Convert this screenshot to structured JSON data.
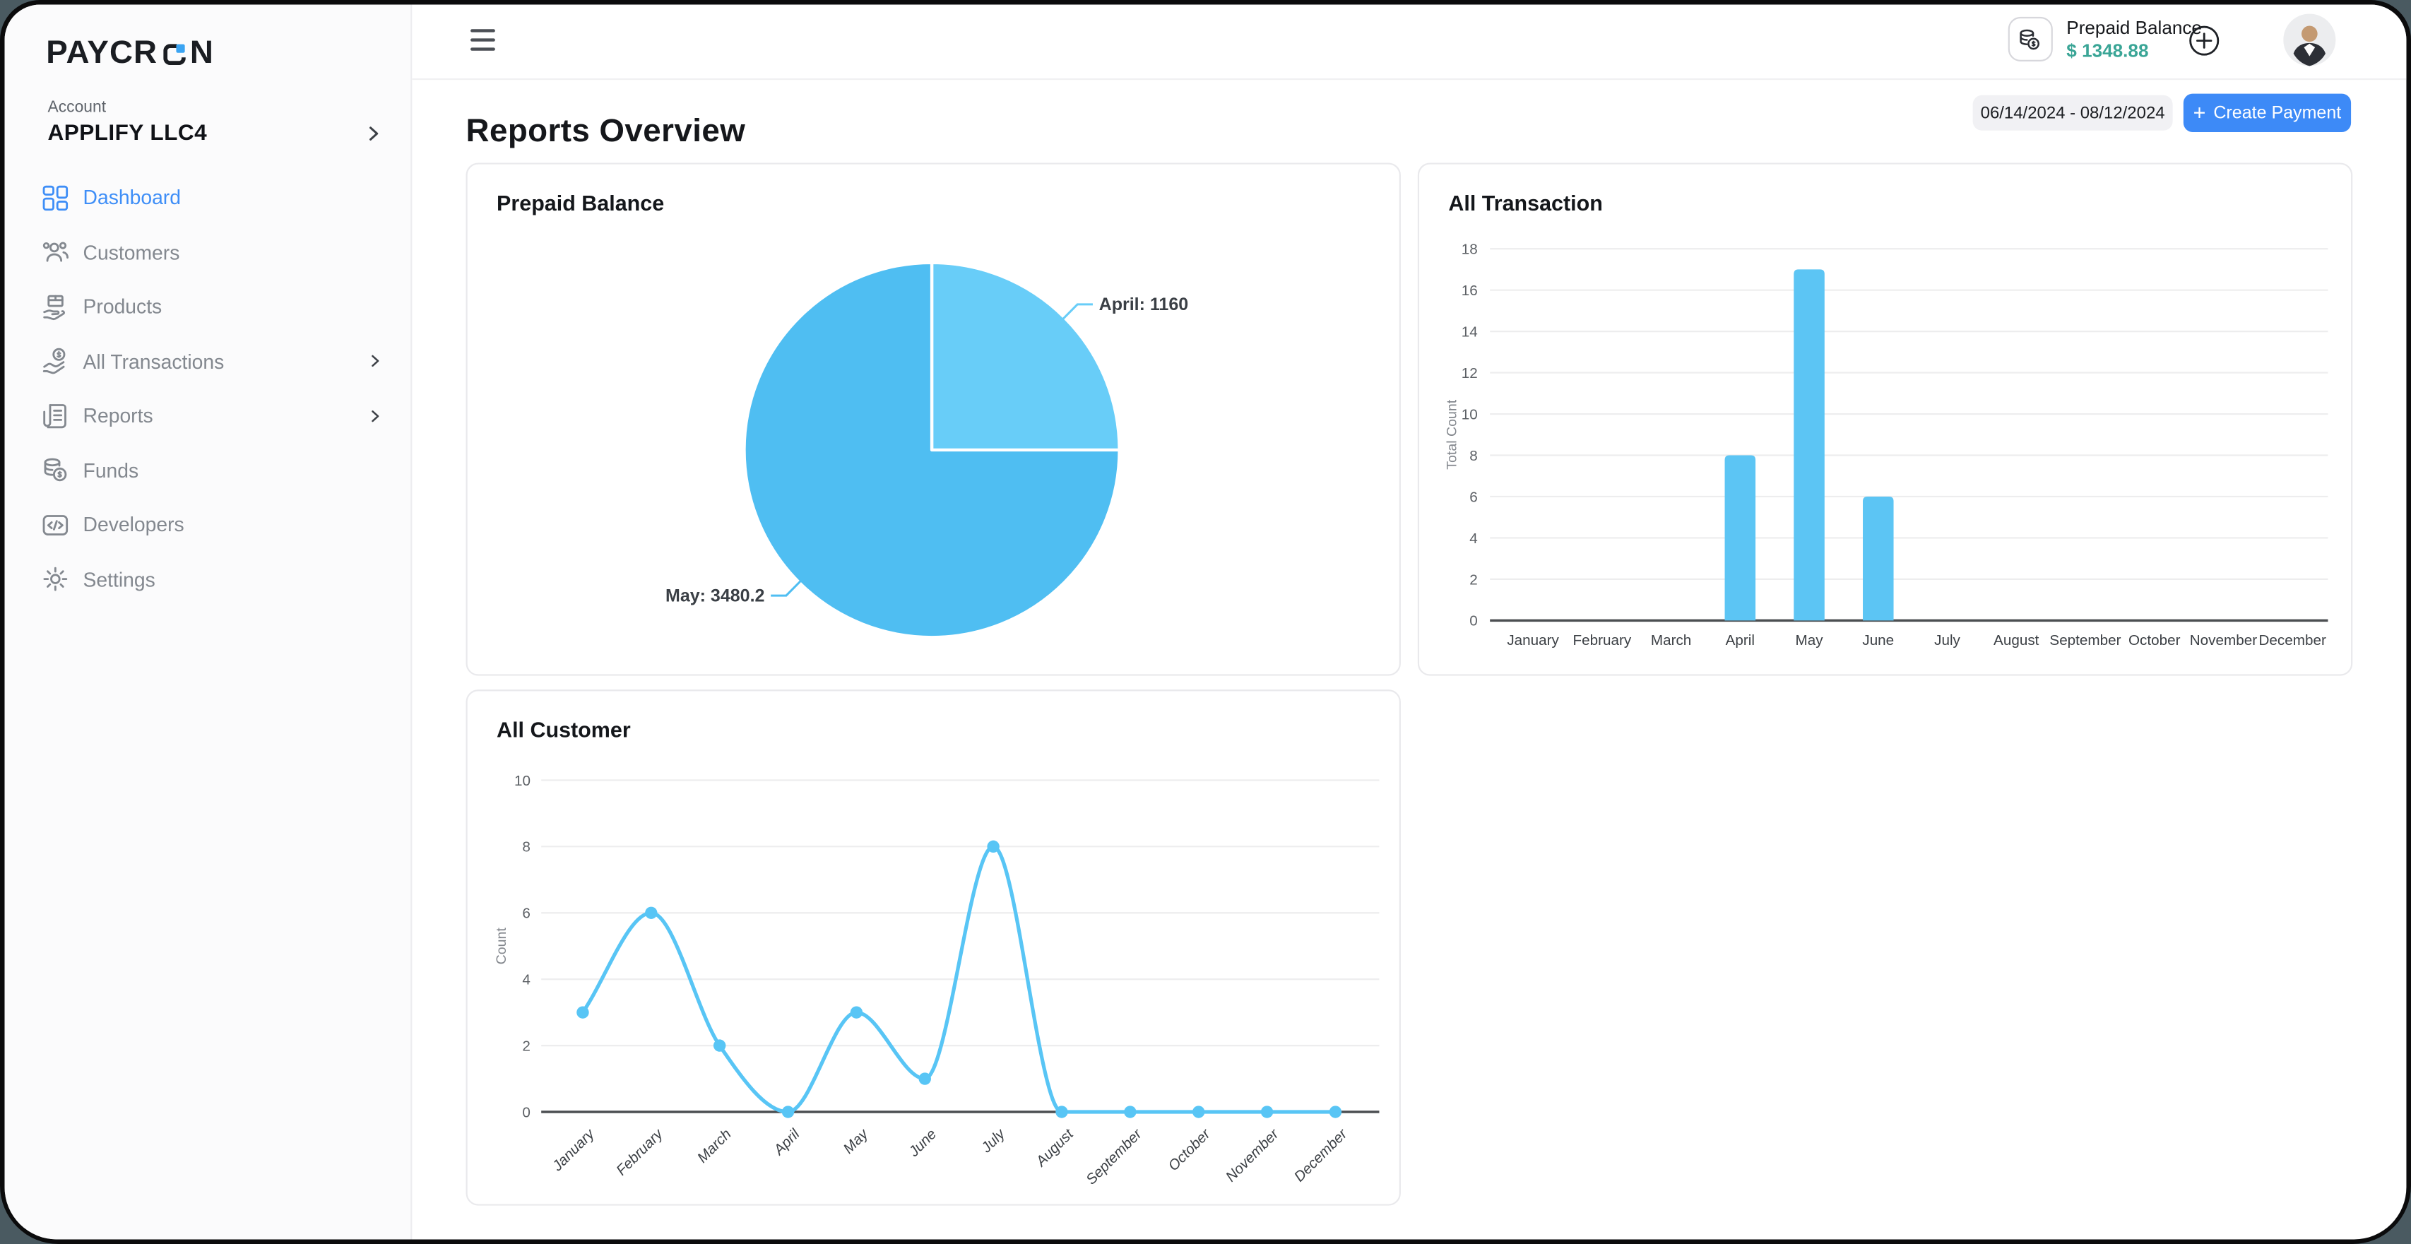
{
  "sidebar": {
    "logo_text": "PAYCRON",
    "account_label": "Account",
    "account_name": "APPLIFY LLC4",
    "items": [
      {
        "label": "Dashboard",
        "icon": "dashboard-grid-icon",
        "active": true,
        "chevron": false
      },
      {
        "label": "Customers",
        "icon": "customers-icon",
        "active": false,
        "chevron": false
      },
      {
        "label": "Products",
        "icon": "products-icon",
        "active": false,
        "chevron": false
      },
      {
        "label": "All Transactions",
        "icon": "transactions-icon",
        "active": false,
        "chevron": true
      },
      {
        "label": "Reports",
        "icon": "reports-icon",
        "active": false,
        "chevron": true
      },
      {
        "label": "Funds",
        "icon": "funds-icon",
        "active": false,
        "chevron": false
      },
      {
        "label": "Developers",
        "icon": "developers-icon",
        "active": false,
        "chevron": false
      },
      {
        "label": "Settings",
        "icon": "settings-icon",
        "active": false,
        "chevron": false
      }
    ]
  },
  "topbar": {
    "prepaid_balance_label": "Prepaid Balance",
    "prepaid_balance_value": "$ 1348.88"
  },
  "header": {
    "title": "Reports Overview",
    "date_range": "06/14/2024 - 08/12/2024",
    "plus_glyph": "+",
    "create_payment_label": "Create Payment"
  },
  "colors": {
    "accent_blue": "#3d8af7",
    "active_nav_blue": "#3e8ef7",
    "balance_teal": "#3aa596",
    "chart_blue": "#5cc5f4",
    "pie_light": "#68cdf8",
    "pie_dark": "#4fbef2",
    "grid_line": "#ededee",
    "axis_line": "#4c4f52"
  },
  "chart_data": [
    {
      "id": "prepaid-balance-pie",
      "type": "pie",
      "title": "Prepaid Balance",
      "labels": [
        "April",
        "May"
      ],
      "values": [
        1160,
        3480.2
      ],
      "slice_colors": [
        "#68cdf8",
        "#4fbef2"
      ],
      "callouts": [
        "April: 1160",
        "May: 3480.2"
      ],
      "legend_position": "none"
    },
    {
      "id": "all-transaction-bar",
      "type": "bar",
      "title": "All Transaction",
      "categories": [
        "January",
        "February",
        "March",
        "April",
        "May",
        "June",
        "July",
        "August",
        "September",
        "October",
        "November",
        "December"
      ],
      "values": [
        0,
        0,
        0,
        8,
        17,
        6,
        0,
        0,
        0,
        0,
        0,
        0
      ],
      "xlabel": "",
      "ylabel": "Total Count",
      "ylim": [
        0,
        18
      ],
      "yticks": [
        0,
        2,
        4,
        6,
        8,
        10,
        12,
        14,
        16,
        18
      ],
      "bar_color": "#5cc5f4",
      "grid": true,
      "legend_position": "none"
    },
    {
      "id": "all-customer-line",
      "type": "line",
      "title": "All Customer",
      "categories": [
        "January",
        "February",
        "March",
        "April",
        "May",
        "June",
        "July",
        "August",
        "September",
        "October",
        "November",
        "December"
      ],
      "values": [
        3,
        6,
        2,
        0,
        3,
        1,
        8,
        0,
        0,
        0,
        0,
        0
      ],
      "xlabel": "",
      "ylabel": "Count",
      "ylim": [
        0,
        10
      ],
      "yticks": [
        0,
        2,
        4,
        6,
        8,
        10
      ],
      "line_color": "#58c5f5",
      "point_radius": 4,
      "smooth": true,
      "grid": true,
      "xtick_rotation": -45,
      "legend_position": "none"
    }
  ]
}
